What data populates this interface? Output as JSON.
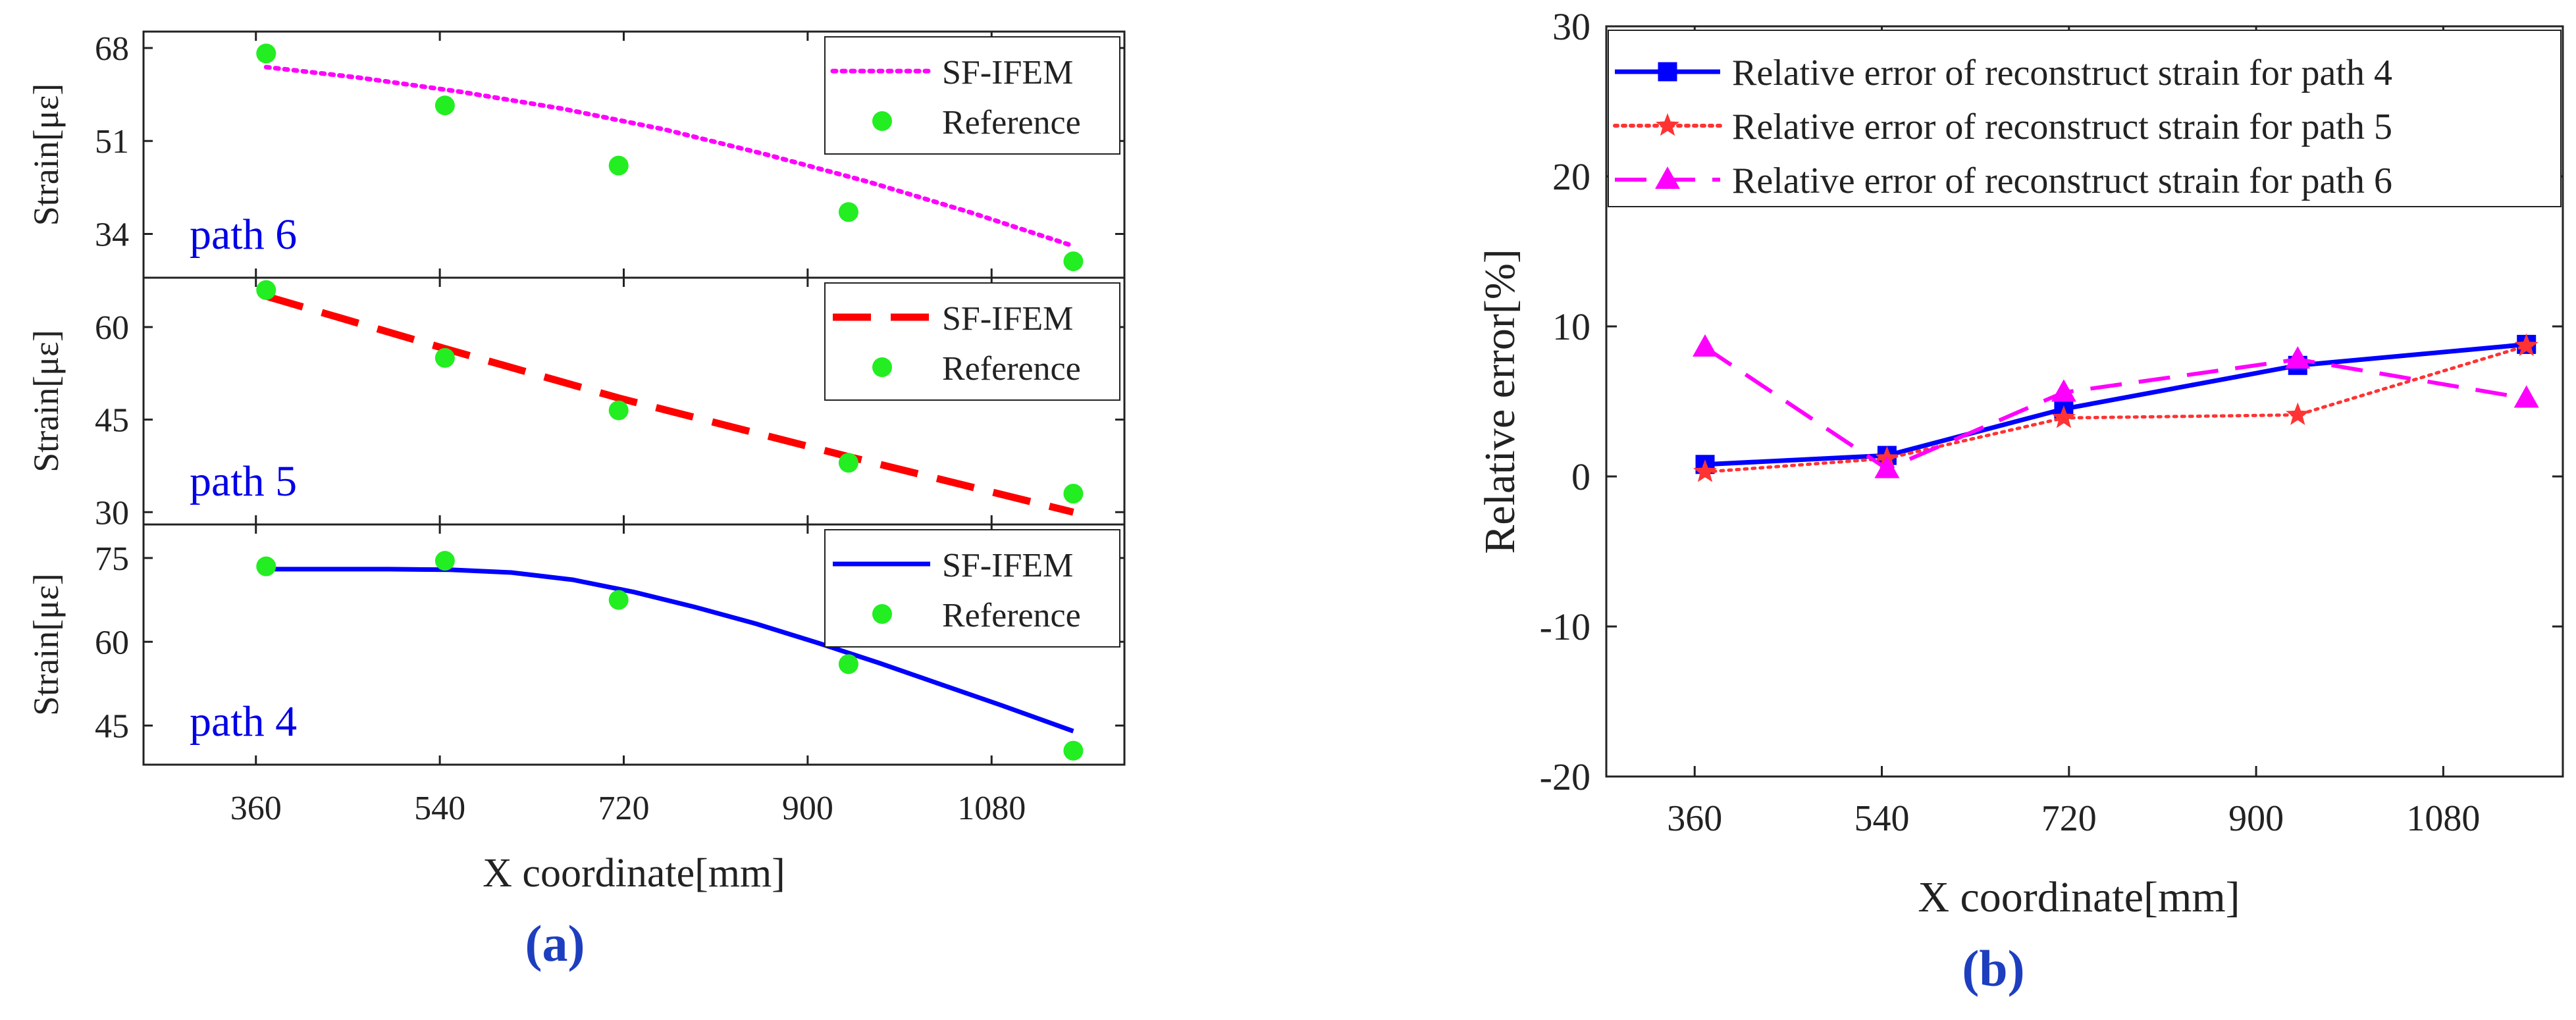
{
  "chart_data": [
    {
      "id": "a",
      "type": "line",
      "caption": "(a)",
      "xlabel": "X coordinate[mm]",
      "xlim": [
        250,
        1210
      ],
      "xticks": [
        360,
        540,
        720,
        900,
        1080
      ],
      "panels": [
        {
          "path_label": "path 6",
          "ylabel": "Strain[με]",
          "ylim": [
            26,
            71
          ],
          "yticks": [
            34,
            51,
            68
          ],
          "fit_style": "dotted",
          "fit_color": "#ff00ff",
          "series": [
            {
              "name": "SF-IFEM",
              "kind": "fit",
              "x": [
                370,
                460,
                560,
                660,
                760,
                860,
                960,
                1060,
                1160
              ],
              "y": [
                64.5,
                62.6,
                60.0,
                56.9,
                53.1,
                48.5,
                43.5,
                37.9,
                31.8
              ]
            },
            {
              "name": "Reference",
              "kind": "ref",
              "x": [
                370,
                545,
                715,
                940,
                1160
              ],
              "y": [
                67,
                57.5,
                46.5,
                38,
                29
              ]
            }
          ]
        },
        {
          "path_label": "path 5",
          "ylabel": "Strain[με]",
          "ylim": [
            28,
            68
          ],
          "yticks": [
            30,
            45,
            60
          ],
          "fit_style": "dashed",
          "fit_color": "#ff0000",
          "series": [
            {
              "name": "SF-IFEM",
              "kind": "fit",
              "x": [
                370,
                545,
                715,
                940,
                1160
              ],
              "y": [
                65,
                56.5,
                48.5,
                39,
                30
              ]
            },
            {
              "name": "Reference",
              "kind": "ref",
              "x": [
                370,
                545,
                715,
                940,
                1160
              ],
              "y": [
                66,
                55,
                46.5,
                38,
                33
              ]
            }
          ]
        },
        {
          "path_label": "path 4",
          "ylabel": "Strain[με]",
          "ylim": [
            38,
            81
          ],
          "yticks": [
            45,
            60,
            75
          ],
          "fit_style": "solid",
          "fit_color": "#0000ff",
          "series": [
            {
              "name": "SF-IFEM",
              "kind": "fit",
              "x": [
                370,
                430,
                490,
                550,
                610,
                670,
                730,
                790,
                850,
                910,
                970,
                1030,
                1090,
                1160
              ],
              "y": [
                73,
                73,
                73,
                72.9,
                72.4,
                71.1,
                68.9,
                66.2,
                63.2,
                59.8,
                56.2,
                52.4,
                48.6,
                44.0
              ]
            },
            {
              "name": "Reference",
              "kind": "ref",
              "x": [
                370,
                545,
                715,
                940,
                1160
              ],
              "y": [
                73.5,
                74.5,
                67.5,
                56,
                40.5
              ]
            }
          ]
        }
      ]
    },
    {
      "id": "b",
      "type": "line",
      "caption": "(b)",
      "xlabel": "X coordinate[mm]",
      "ylabel": "Relative error[%]",
      "xlim": [
        275,
        1195
      ],
      "ylim": [
        -20,
        30
      ],
      "xticks": [
        360,
        540,
        720,
        900,
        1080
      ],
      "yticks": [
        -20,
        -10,
        0,
        10,
        20,
        30
      ],
      "series": [
        {
          "name": "Relative error of reconstruct strain for path 4",
          "color": "#0000ff",
          "style": "solid",
          "marker": "square",
          "x": [
            370,
            545,
            715,
            940,
            1160
          ],
          "y": [
            0.8,
            1.4,
            4.5,
            7.4,
            8.8
          ]
        },
        {
          "name": "Relative error of reconstruct strain for path 5",
          "color": "#ff3333",
          "style": "dotted",
          "marker": "star",
          "x": [
            370,
            545,
            715,
            940,
            1160
          ],
          "y": [
            0.3,
            1.2,
            3.9,
            4.1,
            8.7
          ]
        },
        {
          "name": "Relative error of reconstruct strain for path 6",
          "color": "#ff00ff",
          "style": "dashed",
          "marker": "triangle",
          "x": [
            370,
            545,
            715,
            940,
            1160
          ],
          "y": [
            8.6,
            0.5,
            5.6,
            7.8,
            5.2
          ]
        }
      ]
    }
  ]
}
